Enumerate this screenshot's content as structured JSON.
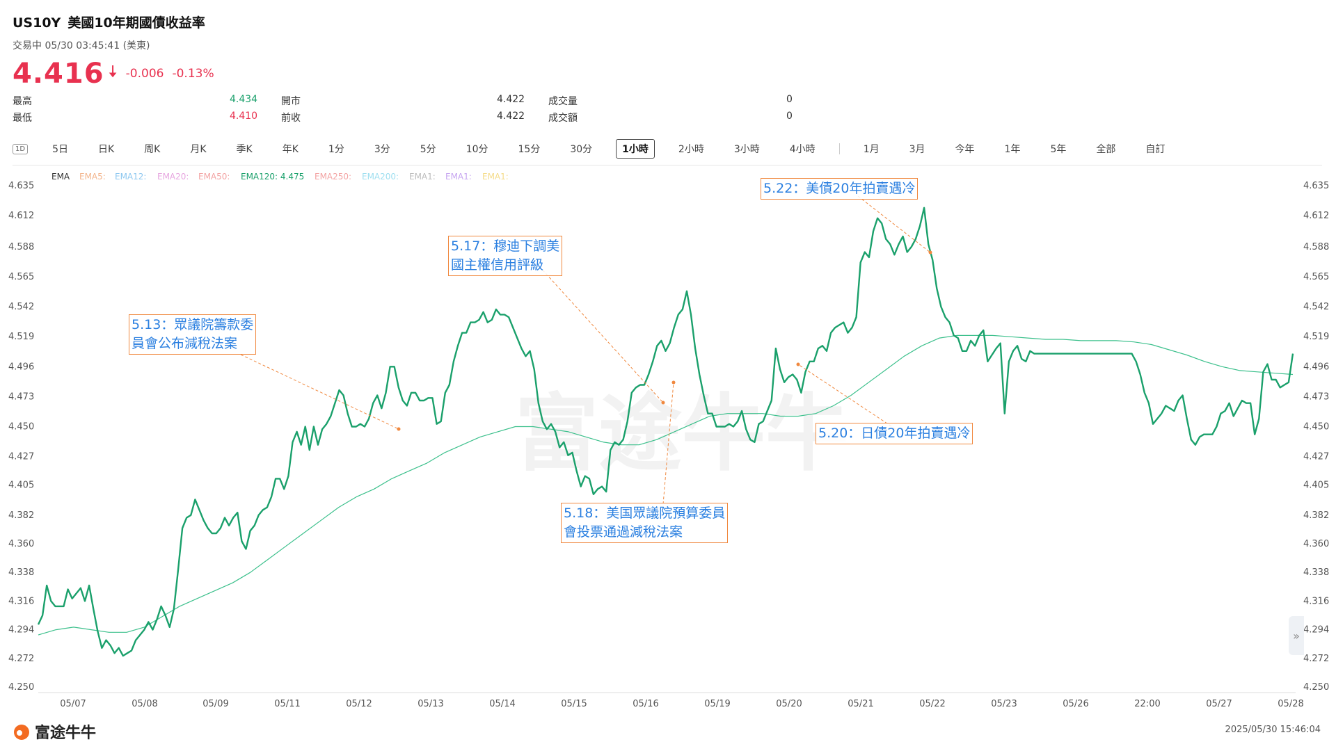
{
  "header": {
    "symbol": "US10Y",
    "name": "美國10年期國債收益率",
    "status": "交易中 05/30 03:45:41 (美東)",
    "price": "4.416",
    "change": "-0.006",
    "change_pct": "-0.13%",
    "stats": [
      {
        "label": "最高",
        "value": "4.434",
        "tone": "g"
      },
      {
        "label": "開市",
        "value": "4.422",
        "tone": "n"
      },
      {
        "label": "成交量",
        "value": "0",
        "tone": "n"
      },
      {
        "label": "最低",
        "value": "4.410",
        "tone": "r"
      },
      {
        "label": "前收",
        "value": "4.422",
        "tone": "n"
      },
      {
        "label": "成交額",
        "value": "0",
        "tone": "n"
      }
    ]
  },
  "tabs": {
    "icon_label": "1D",
    "items": [
      "5日",
      "日K",
      "周K",
      "月K",
      "季K",
      "年K",
      "1分",
      "3分",
      "5分",
      "10分",
      "15分",
      "30分",
      "1小時",
      "2小時",
      "3小時",
      "4小時"
    ],
    "items2": [
      "1月",
      "3月",
      "今年",
      "1年",
      "5年",
      "全部",
      "自訂"
    ],
    "active": "1小時"
  },
  "legend": {
    "title": "EMA",
    "items": [
      {
        "text": "EMA5:",
        "color": "#f3b58d"
      },
      {
        "text": "EMA12:",
        "color": "#8ec8f0"
      },
      {
        "text": "EMA20:",
        "color": "#e7a6e0"
      },
      {
        "text": "EMA50:",
        "color": "#f3a4a4"
      },
      {
        "text": "EMA120: 4.475",
        "color": "#1aa06b"
      },
      {
        "text": "EMA250:",
        "color": "#f3a4a4"
      },
      {
        "text": "EMA200:",
        "color": "#9fdff0"
      },
      {
        "text": "EMA1:",
        "color": "#bdbdbd"
      },
      {
        "text": "EMA1:",
        "color": "#c7a6f0"
      },
      {
        "text": "EMA1:",
        "color": "#f5dc8a"
      }
    ]
  },
  "chart_data": {
    "type": "line",
    "ylim": [
      4.25,
      4.635
    ],
    "y_ticks": [
      "4.635",
      "4.612",
      "4.588",
      "4.565",
      "4.542",
      "4.519",
      "4.496",
      "4.473",
      "4.450",
      "4.427",
      "4.405",
      "4.382",
      "4.360",
      "4.338",
      "4.316",
      "4.294",
      "4.272",
      "4.250"
    ],
    "x_labels": [
      "05/07",
      "05/08",
      "05/09",
      "05/11",
      "05/12",
      "05/13",
      "05/14",
      "05/15",
      "05/16",
      "05/19",
      "05/20",
      "05/21",
      "05/22",
      "05/23",
      "05/26",
      "22:00",
      "05/27",
      "05/28"
    ],
    "series": [
      {
        "name": "US10Y",
        "color": "#1aa06b",
        "values": [
          4.298,
          4.305,
          4.328,
          4.316,
          4.312,
          4.312,
          4.312,
          4.325,
          4.318,
          4.322,
          4.326,
          4.316,
          4.328,
          4.31,
          4.293,
          4.28,
          4.286,
          4.282,
          4.276,
          4.28,
          4.274,
          4.276,
          4.278,
          4.286,
          4.29,
          4.294,
          4.3,
          4.294,
          4.302,
          4.312,
          4.305,
          4.296,
          4.31,
          4.34,
          4.372,
          4.38,
          4.382,
          4.394,
          4.386,
          4.378,
          4.372,
          4.368,
          4.368,
          4.372,
          4.38,
          4.374,
          4.38,
          4.384,
          4.362,
          4.356,
          4.37,
          4.374,
          4.382,
          4.386,
          4.388,
          4.396,
          4.41,
          4.41,
          4.402,
          4.412,
          4.438,
          4.446,
          4.436,
          4.45,
          4.432,
          4.45,
          4.436,
          4.448,
          4.452,
          4.458,
          4.468,
          4.478,
          4.474,
          4.46,
          4.45,
          4.45,
          4.452,
          4.45,
          4.456,
          4.468,
          4.474,
          4.464,
          4.476,
          4.496,
          4.496,
          4.48,
          4.47,
          4.466,
          4.476,
          4.476,
          4.47,
          4.47,
          4.472,
          4.472,
          4.452,
          4.454,
          4.476,
          4.482,
          4.5,
          4.512,
          4.522,
          4.522,
          4.53,
          4.53,
          4.532,
          4.538,
          4.53,
          4.532,
          4.54,
          4.536,
          4.536,
          4.534,
          4.526,
          4.518,
          4.51,
          4.504,
          4.508,
          4.494,
          4.468,
          4.454,
          4.448,
          4.452,
          4.446,
          4.434,
          4.438,
          4.428,
          4.43,
          4.416,
          4.404,
          4.412,
          4.41,
          4.398,
          4.402,
          4.404,
          4.4,
          4.432,
          4.438,
          4.436,
          4.44,
          4.454,
          4.476,
          4.48,
          4.482,
          4.482,
          4.49,
          4.5,
          4.512,
          4.516,
          4.508,
          4.514,
          4.526,
          4.536,
          4.54,
          4.554,
          4.536,
          4.51,
          4.49,
          4.474,
          4.46,
          4.46,
          4.45,
          4.45,
          4.45,
          4.452,
          4.45,
          4.454,
          4.462,
          4.448,
          4.44,
          4.438,
          4.452,
          4.454,
          4.462,
          4.47,
          4.51,
          4.494,
          4.484,
          4.488,
          4.49,
          4.486,
          4.476,
          4.492,
          4.5,
          4.5,
          4.51,
          4.512,
          4.508,
          4.522,
          4.526,
          4.528,
          4.53,
          4.522,
          4.526,
          4.534,
          4.576,
          4.584,
          4.58,
          4.6,
          4.61,
          4.606,
          4.594,
          4.59,
          4.582,
          4.59,
          4.596,
          4.584,
          4.588,
          4.594,
          4.604,
          4.618,
          4.59,
          4.578,
          4.556,
          4.542,
          4.534,
          4.53,
          4.52,
          4.518,
          4.508,
          4.508,
          4.516,
          4.512,
          4.52,
          4.524,
          4.5,
          4.505,
          4.51,
          4.514,
          4.46,
          4.5,
          4.508,
          4.512,
          4.502,
          4.5,
          4.508,
          4.506,
          4.506,
          4.506,
          4.506,
          4.506,
          4.506,
          4.506,
          4.506,
          4.506,
          4.506,
          4.506,
          4.506,
          4.506,
          4.506,
          4.506,
          4.506,
          4.506,
          4.506,
          4.506,
          4.506,
          4.506,
          4.506,
          4.506,
          4.506,
          4.5,
          4.49,
          4.476,
          4.468,
          4.452,
          4.456,
          4.46,
          4.466,
          4.464,
          4.462,
          4.47,
          4.474,
          4.456,
          4.44,
          4.436,
          4.442,
          4.444,
          4.444,
          4.444,
          4.45,
          4.46,
          4.462,
          4.468,
          4.458,
          4.464,
          4.47,
          4.468,
          4.468,
          4.444,
          4.456,
          4.492,
          4.498,
          4.486,
          4.486,
          4.48,
          4.482,
          4.484,
          4.506
        ]
      },
      {
        "name": "EMA120",
        "color": "#3cc08c",
        "values": [
          4.29,
          4.294,
          4.296,
          4.294,
          4.292,
          4.292,
          4.296,
          4.304,
          4.312,
          4.318,
          4.324,
          4.33,
          4.338,
          4.348,
          4.358,
          4.368,
          4.378,
          4.388,
          4.396,
          4.402,
          4.41,
          4.416,
          4.422,
          4.43,
          4.436,
          4.442,
          4.446,
          4.45,
          4.45,
          4.448,
          4.446,
          4.442,
          4.438,
          4.436,
          4.436,
          4.44,
          4.446,
          4.452,
          4.458,
          4.46,
          4.46,
          4.46,
          4.458,
          4.458,
          4.46,
          4.466,
          4.474,
          4.484,
          4.494,
          4.504,
          4.512,
          4.518,
          4.52,
          4.52,
          4.52,
          4.519,
          4.518,
          4.517,
          4.517,
          4.516,
          4.516,
          4.516,
          4.515,
          4.513,
          4.509,
          4.505,
          4.5,
          4.496,
          4.493,
          4.492,
          4.491,
          4.49
        ]
      }
    ],
    "annotations": [
      {
        "text": "5.13：眾議院籌款委\n員會公布減稅法案"
      },
      {
        "text": "5.17：穆迪下調美\n國主權信用評級"
      },
      {
        "text": "5.18：美国眾議院預算委員\n會投票通過減稅法案"
      },
      {
        "text": "5.20：日債20年拍賣遇冷"
      },
      {
        "text": "5.22：美債20年拍賣遇冷"
      }
    ]
  },
  "footer": {
    "logo_text": "富途牛牛",
    "timestamp": "2025/05/30 15:46:04",
    "expand_icon": "»"
  }
}
